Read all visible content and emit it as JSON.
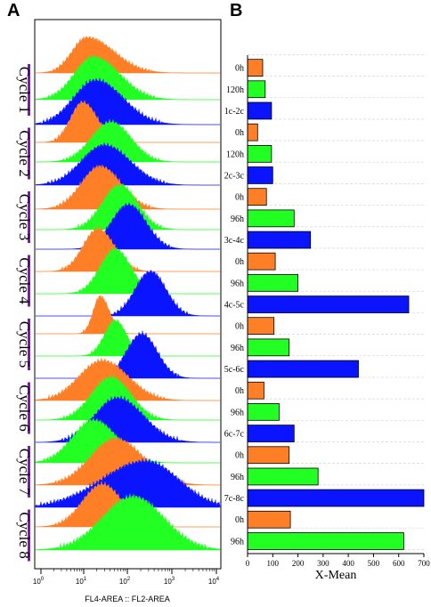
{
  "panel_a": {
    "letter": "A",
    "xlabel": "FL4-AREA :: FL2-AREA",
    "x_ticks": [
      "10^0",
      "10^1",
      "10^2",
      "10^3",
      "10^4"
    ],
    "cycles": [
      "Cycle 1",
      "Cycle 2",
      "Cycle 3",
      "Cycle 4",
      "Cycle 5",
      "Cycle 6",
      "Cycle 7",
      "Cycle 8"
    ],
    "accent_color": "#7b1fa2",
    "histogram_colors": {
      "orange": "#ff7f27",
      "green": "#22ff22",
      "blue": "#0a14ff"
    }
  },
  "chart_data": {
    "type": "bar",
    "orientation": "horizontal",
    "title": "",
    "panel_letter": "B",
    "xlabel": "X-Mean",
    "ylabel": "",
    "xlim": [
      0,
      700
    ],
    "x_ticks": [
      0,
      100,
      200,
      300,
      400,
      500,
      600,
      700
    ],
    "grid": true,
    "categories": [
      "0h",
      "120h",
      "1c-2c",
      "0h",
      "120h",
      "2c-3c",
      "0h",
      "96h",
      "3c-4c",
      "0h",
      "96h",
      "4c-5c",
      "0h",
      "96h",
      "5c-6c",
      "0h",
      "96h",
      "6c-7c",
      "0h",
      "96h",
      "7c-8c",
      "0h",
      "96h"
    ],
    "values": [
      60,
      70,
      95,
      40,
      95,
      100,
      75,
      185,
      250,
      110,
      200,
      640,
      105,
      165,
      440,
      65,
      125,
      185,
      165,
      280,
      700,
      170,
      620
    ],
    "bar_colors": [
      "#ff7f27",
      "#22ff22",
      "#0a14ff",
      "#ff7f27",
      "#22ff22",
      "#0a14ff",
      "#ff7f27",
      "#22ff22",
      "#0a14ff",
      "#ff7f27",
      "#22ff22",
      "#0a14ff",
      "#ff7f27",
      "#22ff22",
      "#0a14ff",
      "#ff7f27",
      "#22ff22",
      "#0a14ff",
      "#ff7f27",
      "#22ff22",
      "#0a14ff",
      "#ff7f27",
      "#22ff22"
    ]
  }
}
